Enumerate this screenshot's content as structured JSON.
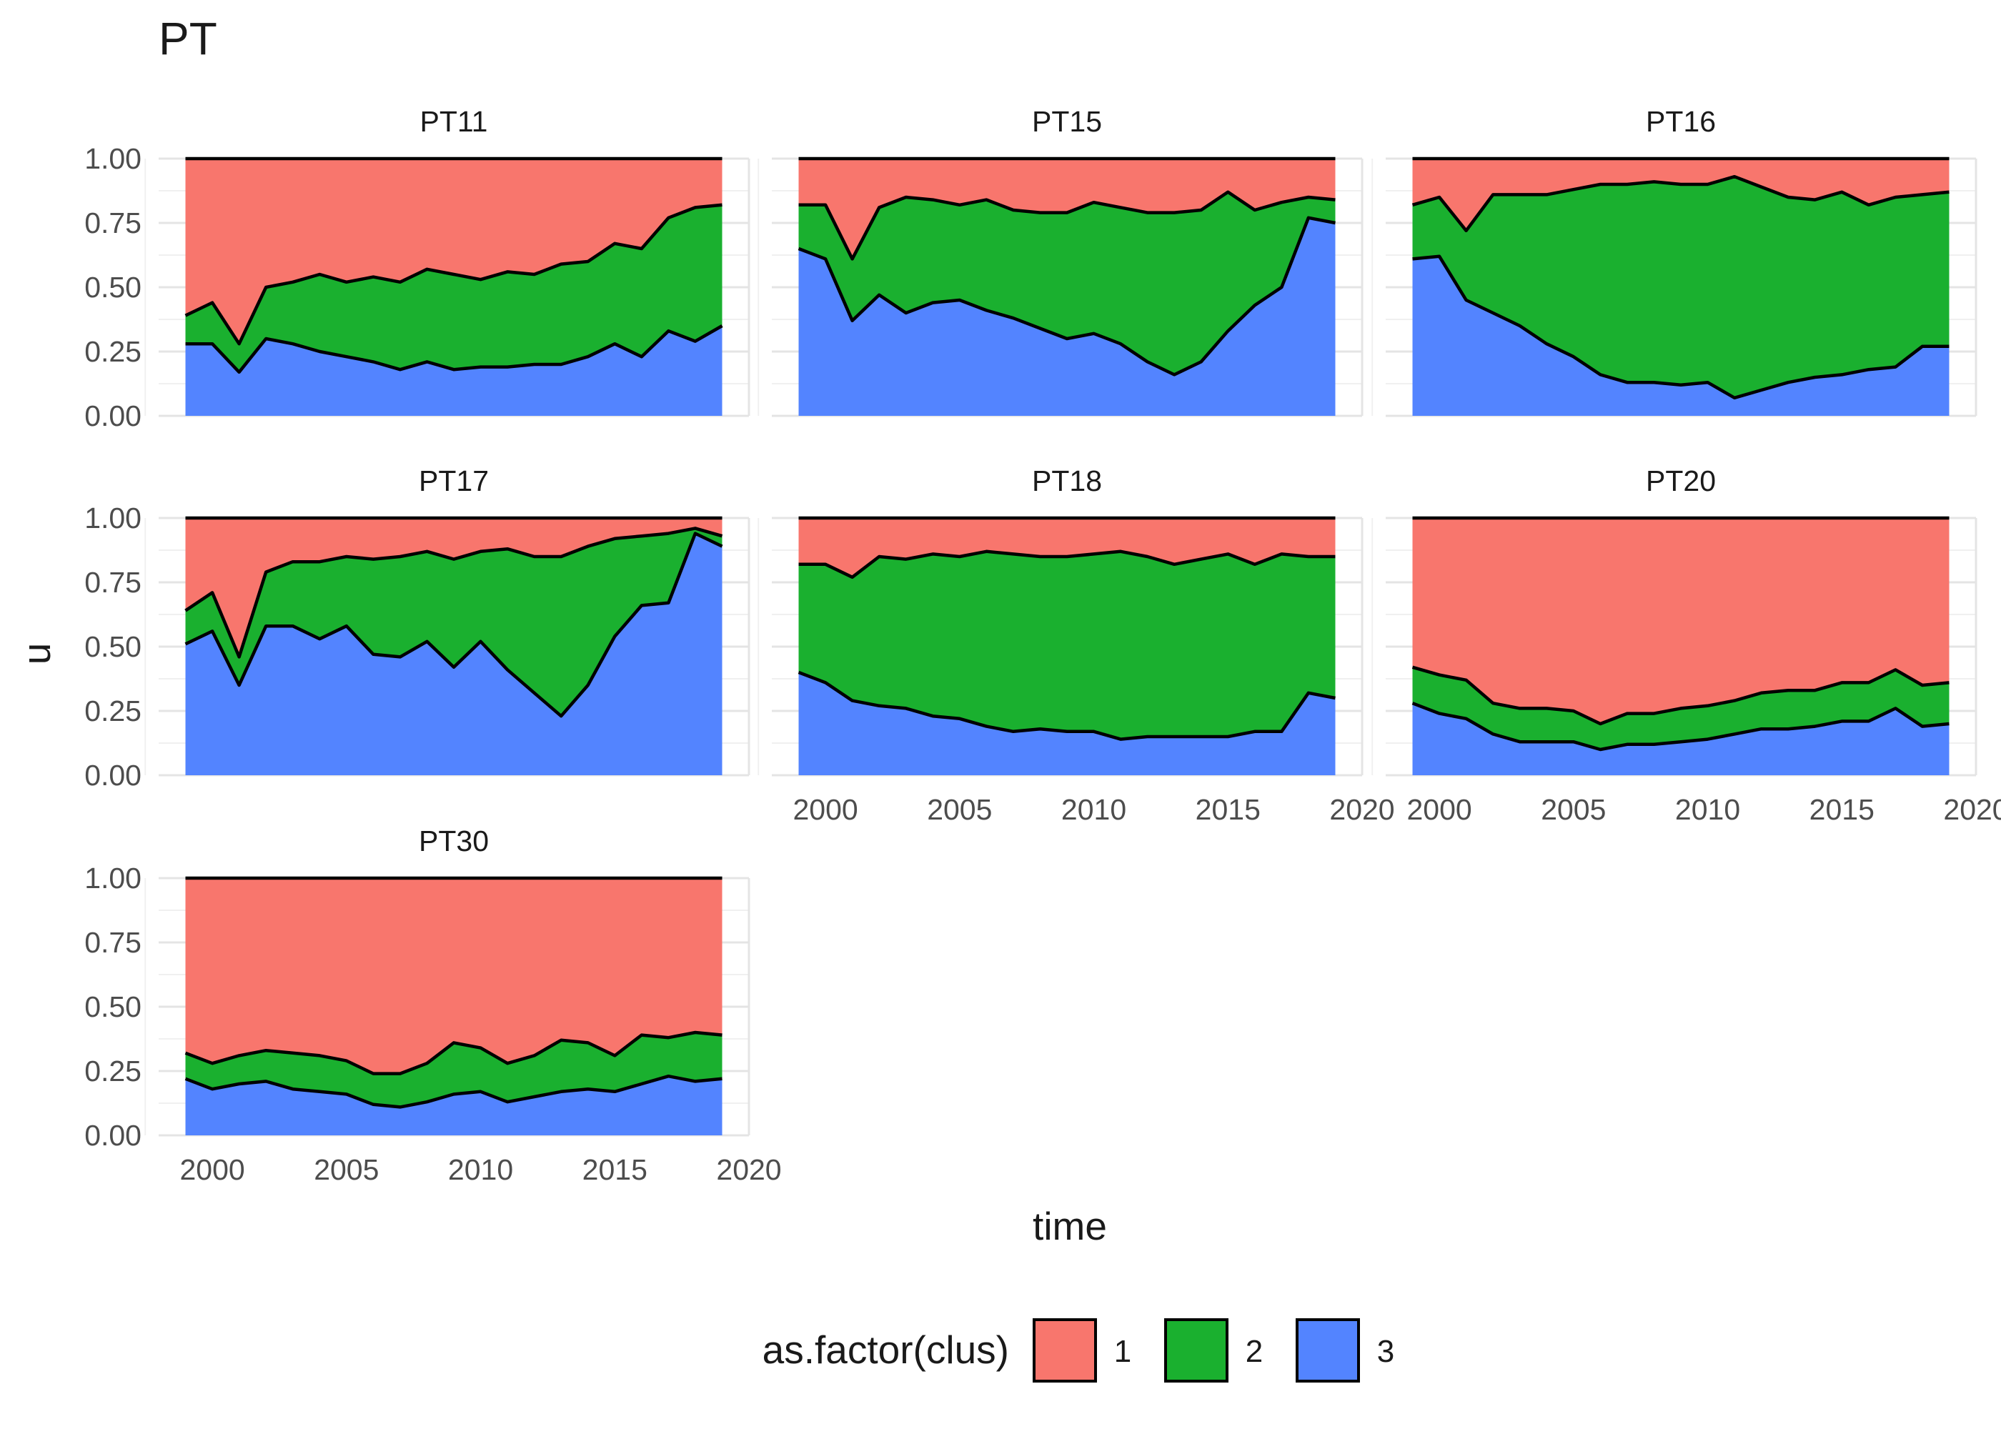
{
  "chart_data": {
    "type": "area",
    "title": "PT",
    "xlabel": "time",
    "ylabel": "u",
    "xlim": [
      1998,
      2020
    ],
    "ylim": [
      0,
      1
    ],
    "x_ticks": [
      2000,
      2005,
      2010,
      2015,
      2020
    ],
    "y_ticks": [
      "0.00",
      "0.25",
      "0.50",
      "0.75",
      "1.00"
    ],
    "grid": true,
    "legend": {
      "title": "as.factor(clus)",
      "placement": "bottom",
      "entries": [
        {
          "label": "1",
          "color": "#F8766D"
        },
        {
          "label": "2",
          "color": "#1AB02F"
        },
        {
          "label": "3",
          "color": "#5384FF"
        }
      ]
    },
    "x": [
      1999,
      2000,
      2001,
      2002,
      2003,
      2004,
      2005,
      2006,
      2007,
      2008,
      2009,
      2010,
      2011,
      2012,
      2013,
      2014,
      2015,
      2016,
      2017,
      2018,
      2019
    ],
    "stack_note_series_order": [
      "3",
      "2",
      "1"
    ],
    "panels": [
      {
        "label": "PT11",
        "cumulative": {
          "3": [
            0.28,
            0.28,
            0.17,
            0.3,
            0.28,
            0.25,
            0.23,
            0.21,
            0.18,
            0.21,
            0.18,
            0.19,
            0.19,
            0.2,
            0.2,
            0.23,
            0.28,
            0.23,
            0.33,
            0.29,
            0.35
          ],
          "2": [
            0.39,
            0.44,
            0.28,
            0.5,
            0.52,
            0.55,
            0.52,
            0.54,
            0.52,
            0.57,
            0.55,
            0.53,
            0.56,
            0.55,
            0.59,
            0.6,
            0.67,
            0.65,
            0.77,
            0.81,
            0.82
          ],
          "1": [
            1,
            1,
            1,
            1,
            1,
            1,
            1,
            1,
            1,
            1,
            1,
            1,
            1,
            1,
            1,
            1,
            1,
            1,
            1,
            1,
            1
          ]
        }
      },
      {
        "label": "PT15",
        "cumulative": {
          "3": [
            0.65,
            0.61,
            0.37,
            0.47,
            0.4,
            0.44,
            0.45,
            0.41,
            0.38,
            0.34,
            0.3,
            0.32,
            0.28,
            0.21,
            0.16,
            0.21,
            0.33,
            0.43,
            0.5,
            0.77,
            0.75
          ],
          "2": [
            0.82,
            0.82,
            0.61,
            0.81,
            0.85,
            0.84,
            0.82,
            0.84,
            0.8,
            0.79,
            0.79,
            0.83,
            0.81,
            0.79,
            0.79,
            0.8,
            0.87,
            0.8,
            0.83,
            0.85,
            0.84
          ],
          "1": [
            1,
            1,
            1,
            1,
            1,
            1,
            1,
            1,
            1,
            1,
            1,
            1,
            1,
            1,
            1,
            1,
            1,
            1,
            1,
            1,
            1
          ]
        }
      },
      {
        "label": "PT16",
        "cumulative": {
          "3": [
            0.61,
            0.62,
            0.45,
            0.4,
            0.35,
            0.28,
            0.23,
            0.16,
            0.13,
            0.13,
            0.12,
            0.13,
            0.07,
            0.1,
            0.13,
            0.15,
            0.16,
            0.18,
            0.19,
            0.27,
            0.27
          ],
          "2": [
            0.82,
            0.85,
            0.72,
            0.86,
            0.86,
            0.86,
            0.88,
            0.9,
            0.9,
            0.91,
            0.9,
            0.9,
            0.93,
            0.89,
            0.85,
            0.84,
            0.87,
            0.82,
            0.85,
            0.86,
            0.87
          ],
          "1": [
            1,
            1,
            1,
            1,
            1,
            1,
            1,
            1,
            1,
            1,
            1,
            1,
            1,
            1,
            1,
            1,
            1,
            1,
            1,
            1,
            1
          ]
        }
      },
      {
        "label": "PT17",
        "cumulative": {
          "3": [
            0.51,
            0.56,
            0.35,
            0.58,
            0.58,
            0.53,
            0.58,
            0.47,
            0.46,
            0.52,
            0.42,
            0.52,
            0.41,
            0.32,
            0.23,
            0.35,
            0.54,
            0.66,
            0.67,
            0.94,
            0.89
          ],
          "2": [
            0.64,
            0.71,
            0.46,
            0.79,
            0.83,
            0.83,
            0.85,
            0.84,
            0.85,
            0.87,
            0.84,
            0.87,
            0.88,
            0.85,
            0.85,
            0.89,
            0.92,
            0.93,
            0.94,
            0.96,
            0.93
          ],
          "1": [
            1,
            1,
            1,
            1,
            1,
            1,
            1,
            1,
            1,
            1,
            1,
            1,
            1,
            1,
            1,
            1,
            1,
            1,
            1,
            1,
            1
          ]
        }
      },
      {
        "label": "PT18",
        "cumulative": {
          "3": [
            0.4,
            0.36,
            0.29,
            0.27,
            0.26,
            0.23,
            0.22,
            0.19,
            0.17,
            0.18,
            0.17,
            0.17,
            0.14,
            0.15,
            0.15,
            0.15,
            0.15,
            0.17,
            0.17,
            0.32,
            0.3
          ],
          "2": [
            0.82,
            0.82,
            0.77,
            0.85,
            0.84,
            0.86,
            0.85,
            0.87,
            0.86,
            0.85,
            0.85,
            0.86,
            0.87,
            0.85,
            0.82,
            0.84,
            0.86,
            0.82,
            0.86,
            0.85,
            0.85
          ],
          "1": [
            1,
            1,
            1,
            1,
            1,
            1,
            1,
            1,
            1,
            1,
            1,
            1,
            1,
            1,
            1,
            1,
            1,
            1,
            1,
            1,
            1
          ]
        }
      },
      {
        "label": "PT20",
        "cumulative": {
          "3": [
            0.28,
            0.24,
            0.22,
            0.16,
            0.13,
            0.13,
            0.13,
            0.1,
            0.12,
            0.12,
            0.13,
            0.14,
            0.16,
            0.18,
            0.18,
            0.19,
            0.21,
            0.21,
            0.26,
            0.19,
            0.2
          ],
          "2": [
            0.42,
            0.39,
            0.37,
            0.28,
            0.26,
            0.26,
            0.25,
            0.2,
            0.24,
            0.24,
            0.26,
            0.27,
            0.29,
            0.32,
            0.33,
            0.33,
            0.36,
            0.36,
            0.41,
            0.35,
            0.36
          ],
          "1": [
            1,
            1,
            1,
            1,
            1,
            1,
            1,
            1,
            1,
            1,
            1,
            1,
            1,
            1,
            1,
            1,
            1,
            1,
            1,
            1,
            1
          ]
        }
      },
      {
        "label": "PT30",
        "cumulative": {
          "3": [
            0.22,
            0.18,
            0.2,
            0.21,
            0.18,
            0.17,
            0.16,
            0.12,
            0.11,
            0.13,
            0.16,
            0.17,
            0.13,
            0.15,
            0.17,
            0.18,
            0.17,
            0.2,
            0.23,
            0.21,
            0.22
          ],
          "2": [
            0.32,
            0.28,
            0.31,
            0.33,
            0.32,
            0.31,
            0.29,
            0.24,
            0.24,
            0.28,
            0.36,
            0.34,
            0.28,
            0.31,
            0.37,
            0.36,
            0.31,
            0.39,
            0.38,
            0.4,
            0.39
          ],
          "1": [
            1,
            1,
            1,
            1,
            1,
            1,
            1,
            1,
            1,
            1,
            1,
            1,
            1,
            1,
            1,
            1,
            1,
            1,
            1,
            1,
            1
          ]
        }
      }
    ]
  }
}
